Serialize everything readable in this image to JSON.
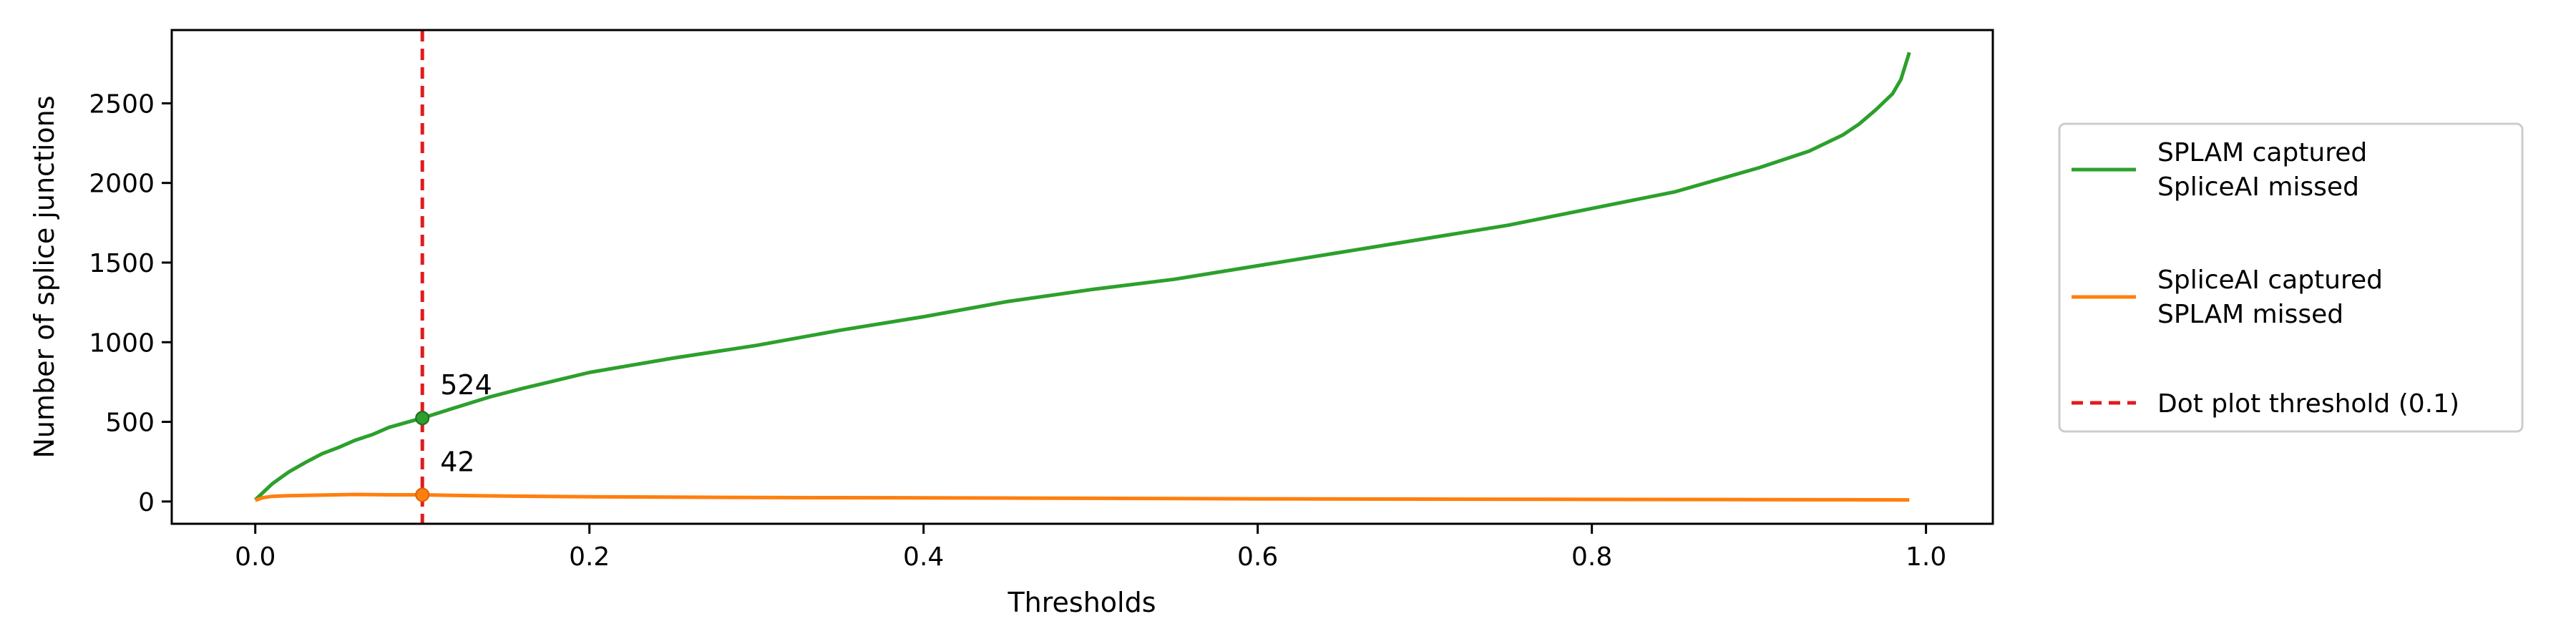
{
  "chart_data": {
    "type": "line",
    "title": "",
    "xlabel": "Thresholds",
    "ylabel": "Number of splice junctions",
    "xlim": [
      -0.05,
      1.04
    ],
    "ylim": [
      -140,
      2960
    ],
    "xticks": [
      "0.0",
      "0.2",
      "0.4",
      "0.6",
      "0.8",
      "1.0"
    ],
    "yticks": [
      "0",
      "500",
      "1000",
      "1500",
      "2000",
      "2500"
    ],
    "grid": false,
    "legend_placement": "outside-right",
    "series": [
      {
        "name": "SPLAM captured\nSpliceAI missed",
        "color": "#2ca02c",
        "x": [
          0.0,
          0.005,
          0.01,
          0.02,
          0.03,
          0.04,
          0.05,
          0.06,
          0.07,
          0.08,
          0.09,
          0.1,
          0.12,
          0.14,
          0.16,
          0.18,
          0.2,
          0.25,
          0.3,
          0.35,
          0.4,
          0.45,
          0.5,
          0.55,
          0.6,
          0.65,
          0.7,
          0.75,
          0.8,
          0.85,
          0.9,
          0.93,
          0.95,
          0.96,
          0.97,
          0.98,
          0.985,
          0.99
        ],
        "y": [
          10,
          60,
          110,
          185,
          245,
          300,
          340,
          385,
          420,
          465,
          495,
          524,
          590,
          655,
          710,
          760,
          810,
          900,
          980,
          1075,
          1160,
          1255,
          1330,
          1395,
          1480,
          1565,
          1650,
          1735,
          1840,
          1945,
          2095,
          2200,
          2300,
          2370,
          2460,
          2560,
          2650,
          2820
        ]
      },
      {
        "name": "SpliceAI captured\nSPLAM missed",
        "color": "#ff7f0e",
        "x": [
          0.0,
          0.005,
          0.01,
          0.02,
          0.04,
          0.06,
          0.08,
          0.1,
          0.12,
          0.15,
          0.2,
          0.25,
          0.3,
          0.35,
          0.4,
          0.5,
          0.6,
          0.7,
          0.8,
          0.9,
          0.95,
          0.99
        ],
        "y": [
          8,
          25,
          32,
          36,
          40,
          44,
          42,
          42,
          38,
          34,
          30,
          27,
          25,
          24,
          23,
          20,
          17,
          15,
          13,
          12,
          11,
          10
        ]
      }
    ],
    "threshold": {
      "label": "Dot plot threshold (0.1)",
      "x": 0.1,
      "color": "#e31a1c",
      "style": "dashed"
    },
    "annotations": [
      {
        "text": "524",
        "x": 0.1,
        "y": 524,
        "series": 0
      },
      {
        "text": "42",
        "x": 0.1,
        "y": 42,
        "series": 1
      }
    ]
  }
}
